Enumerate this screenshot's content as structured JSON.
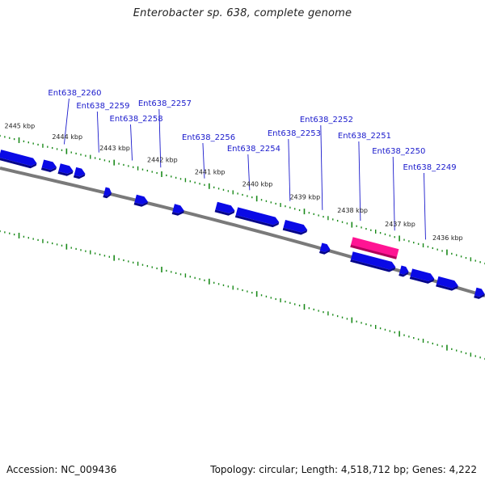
{
  "title": "Enterobacter sp. 638, complete genome",
  "footer": {
    "accession_label": "Accession:",
    "accession": "NC_009436",
    "topology_label": "Topology:",
    "topology": "circular",
    "length_label": "Length:",
    "length": "4,518,712 bp",
    "genes_label": "Genes:",
    "genes": "4,222"
  },
  "colors": {
    "gene": "#0a0ae6",
    "gene_shadow": "#05058a",
    "highlight": "#ff1493",
    "highlight_shadow": "#b0005a",
    "backbone": "#7a7a7a",
    "tick": "#1a8a1a",
    "label": "#1a1acc"
  },
  "map": {
    "start_kbp": 2445.4,
    "end_kbp": 2435.2
  },
  "kbp_marks": [
    {
      "text": "2445 kbp",
      "kbp": 2445
    },
    {
      "text": "2444 kbp",
      "kbp": 2444
    },
    {
      "text": "2443 kbp",
      "kbp": 2443
    },
    {
      "text": "2442 kbp",
      "kbp": 2442
    },
    {
      "text": "2441 kbp",
      "kbp": 2441
    },
    {
      "text": "2440 kbp",
      "kbp": 2440
    },
    {
      "text": "2439 kbp",
      "kbp": 2439
    },
    {
      "text": "2438 kbp",
      "kbp": 2438
    },
    {
      "text": "2437 kbp",
      "kbp": 2437
    },
    {
      "text": "2436 kbp",
      "kbp": 2436
    }
  ],
  "genes": [
    {
      "start_kbp": 2445.4,
      "end_kbp": 2444.6,
      "strand": "-",
      "row": 1
    },
    {
      "start_kbp": 2444.5,
      "end_kbp": 2444.2,
      "strand": "-",
      "row": 1
    },
    {
      "start_kbp": 2444.15,
      "end_kbp": 2443.85,
      "strand": "-",
      "row": 1
    },
    {
      "start_kbp": 2443.82,
      "end_kbp": 2443.6,
      "strand": "-",
      "row": 1
    },
    {
      "start_kbp": 2443.2,
      "end_kbp": 2443.05,
      "strand": "-",
      "row": 2
    },
    {
      "start_kbp": 2442.55,
      "end_kbp": 2442.28,
      "strand": "-",
      "row": 2
    },
    {
      "start_kbp": 2441.75,
      "end_kbp": 2441.52,
      "strand": "-",
      "row": 2
    },
    {
      "start_kbp": 2440.85,
      "end_kbp": 2440.45,
      "strand": "-",
      "row": 1
    },
    {
      "start_kbp": 2440.42,
      "end_kbp": 2439.5,
      "strand": "-",
      "row": 1
    },
    {
      "start_kbp": 2439.42,
      "end_kbp": 2438.92,
      "strand": "-",
      "row": 1
    },
    {
      "start_kbp": 2438.65,
      "end_kbp": 2438.45,
      "strand": "-",
      "row": 2
    },
    {
      "start_kbp": 2438.0,
      "end_kbp": 2437.05,
      "strand": "-",
      "row": 2
    },
    {
      "start_kbp": 2436.98,
      "end_kbp": 2436.8,
      "strand": "-",
      "row": 2
    },
    {
      "start_kbp": 2436.75,
      "end_kbp": 2436.25,
      "strand": "-",
      "row": 2
    },
    {
      "start_kbp": 2436.2,
      "end_kbp": 2435.75,
      "strand": "-",
      "row": 2
    },
    {
      "start_kbp": 2435.4,
      "end_kbp": 2435.2,
      "strand": "-",
      "row": 2
    }
  ],
  "highlight": {
    "start_kbp": 2438.0,
    "end_kbp": 2437.0
  },
  "gene_labels": [
    {
      "text": "Ent638_2260",
      "kbp": 2444.05
    },
    {
      "text": "Ent638_2259",
      "kbp": 2443.32
    },
    {
      "text": "Ent638_2258",
      "kbp": 2442.62
    },
    {
      "text": "Ent638_2257",
      "kbp": 2442.02
    },
    {
      "text": "Ent638_2256",
      "kbp": 2441.1
    },
    {
      "text": "Ent638_2254",
      "kbp": 2440.15
    },
    {
      "text": "Ent638_2253",
      "kbp": 2439.3
    },
    {
      "text": "Ent638_2252",
      "kbp": 2438.62
    },
    {
      "text": "Ent638_2251",
      "kbp": 2437.82
    },
    {
      "text": "Ent638_2250",
      "kbp": 2437.1
    },
    {
      "text": "Ent638_2249",
      "kbp": 2436.45
    }
  ]
}
